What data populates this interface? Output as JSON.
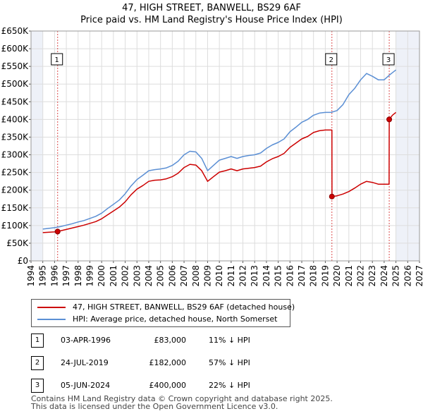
{
  "title_line1": "47, HIGH STREET, BANWELL, BS29 6AF",
  "title_line2": "Price paid vs. HM Land Registry's House Price Index (HPI)",
  "colors": {
    "hpi": "#5b8fd4",
    "price": "#cc0000",
    "grid": "#dddddd",
    "shade": "#eef1f8",
    "marker_line": "#cc0000"
  },
  "chart_data": {
    "type": "line",
    "title": "47, HIGH STREET, BANWELL, BS29 6AF — Price paid vs. HM Land Registry's House Price Index (HPI)",
    "xlabel": "",
    "ylabel": "",
    "xlim": [
      1994,
      2027
    ],
    "ylim": [
      0,
      650000
    ],
    "y_ticks": [
      0,
      50000,
      100000,
      150000,
      200000,
      250000,
      300000,
      350000,
      400000,
      450000,
      500000,
      550000,
      600000,
      650000
    ],
    "y_tick_labels": [
      "£0",
      "£50K",
      "£100K",
      "£150K",
      "£200K",
      "£250K",
      "£300K",
      "£350K",
      "£400K",
      "£450K",
      "£500K",
      "£550K",
      "£600K",
      "£650K"
    ],
    "x_ticks": [
      1994,
      1995,
      1996,
      1997,
      1998,
      1999,
      2000,
      2001,
      2002,
      2003,
      2004,
      2005,
      2006,
      2007,
      2008,
      2009,
      2010,
      2011,
      2012,
      2013,
      2014,
      2015,
      2016,
      2017,
      2018,
      2019,
      2020,
      2021,
      2022,
      2023,
      2024,
      2025,
      2026,
      2027
    ],
    "x_tick_labels": [
      "1994",
      "1995",
      "1996",
      "1997",
      "1998",
      "1999",
      "2000",
      "2001",
      "2002",
      "2003",
      "2004",
      "2005",
      "2006",
      "2007",
      "2008",
      "2009",
      "2010",
      "2011",
      "2012",
      "2013",
      "2014",
      "2015",
      "2016",
      "2017",
      "2018",
      "2019",
      "2020",
      "2021",
      "2022",
      "2023",
      "2024",
      "2025",
      "2026",
      "2027"
    ],
    "shaded_ranges": [
      [
        1994,
        1995
      ],
      [
        2025.0,
        2027
      ]
    ],
    "grid": true,
    "series": [
      {
        "name": "HPI: Average price, detached house, North Somerset",
        "color": "#5b8fd4",
        "x": [
          1995.0,
          1995.5,
          1996.0,
          1996.5,
          1997.0,
          1997.5,
          1998.0,
          1998.5,
          1999.0,
          1999.5,
          2000.0,
          2000.5,
          2001.0,
          2001.5,
          2002.0,
          2002.5,
          2003.0,
          2003.5,
          2004.0,
          2004.5,
          2005.0,
          2005.5,
          2006.0,
          2006.5,
          2007.0,
          2007.5,
          2008.0,
          2008.5,
          2009.0,
          2009.5,
          2010.0,
          2010.5,
          2011.0,
          2011.5,
          2012.0,
          2012.5,
          2013.0,
          2013.5,
          2014.0,
          2014.5,
          2015.0,
          2015.5,
          2016.0,
          2016.5,
          2017.0,
          2017.5,
          2018.0,
          2018.5,
          2019.0,
          2019.5,
          2020.0,
          2020.5,
          2021.0,
          2021.5,
          2022.0,
          2022.5,
          2023.0,
          2023.5,
          2024.0,
          2024.5,
          2025.0
        ],
        "y": [
          90000,
          92000,
          94000,
          97000,
          101000,
          105000,
          110000,
          114000,
          120000,
          126000,
          135000,
          148000,
          160000,
          172000,
          190000,
          212000,
          230000,
          242000,
          255000,
          258000,
          260000,
          263000,
          270000,
          282000,
          300000,
          310000,
          308000,
          290000,
          255000,
          270000,
          285000,
          290000,
          295000,
          290000,
          295000,
          298000,
          300000,
          305000,
          318000,
          328000,
          335000,
          345000,
          365000,
          378000,
          392000,
          400000,
          412000,
          418000,
          420000,
          420000,
          425000,
          442000,
          470000,
          488000,
          512000,
          530000,
          522000,
          512000,
          512000,
          527000,
          540000
        ]
      },
      {
        "name": "47, HIGH STREET, BANWELL, BS29 6AF (detached house)",
        "color": "#cc0000",
        "x": [
          1995.0,
          1995.5,
          1996.0,
          1996.26,
          1996.5,
          1997.0,
          1997.5,
          1998.0,
          1998.5,
          1999.0,
          1999.5,
          2000.0,
          2000.5,
          2001.0,
          2001.5,
          2002.0,
          2002.5,
          2003.0,
          2003.5,
          2004.0,
          2004.5,
          2005.0,
          2005.5,
          2006.0,
          2006.5,
          2007.0,
          2007.5,
          2008.0,
          2008.5,
          2009.0,
          2009.5,
          2010.0,
          2010.5,
          2011.0,
          2011.5,
          2012.0,
          2012.5,
          2013.0,
          2013.5,
          2014.0,
          2014.5,
          2015.0,
          2015.5,
          2016.0,
          2016.5,
          2017.0,
          2017.5,
          2018.0,
          2018.5,
          2019.0,
          2019.5,
          2019.56,
          2019.57,
          2020.0,
          2020.5,
          2021.0,
          2021.5,
          2022.0,
          2022.5,
          2023.0,
          2023.5,
          2024.0,
          2024.42,
          2024.43,
          2024.7,
          2025.0
        ],
        "y": [
          80000,
          81000,
          82000,
          83000,
          85000,
          89000,
          93000,
          97000,
          101000,
          106000,
          111000,
          119000,
          130000,
          141000,
          152000,
          167000,
          187000,
          203000,
          213000,
          225000,
          228000,
          229000,
          232000,
          238000,
          248000,
          264000,
          273000,
          271000,
          255000,
          225000,
          238000,
          251000,
          255000,
          260000,
          255000,
          260000,
          262000,
          264000,
          268000,
          280000,
          289000,
          295000,
          304000,
          321000,
          333000,
          345000,
          352000,
          363000,
          368000,
          370000,
          370000,
          370000,
          182000,
          184000,
          189000,
          196000,
          206000,
          217000,
          225000,
          222000,
          217000,
          217000,
          217000,
          400000,
          412000,
          420000
        ]
      }
    ],
    "markers": [
      {
        "label": "1",
        "x": 1996.26,
        "y": 83000
      },
      {
        "label": "2",
        "x": 2019.56,
        "y": 182000
      },
      {
        "label": "3",
        "x": 2024.43,
        "y": 400000
      }
    ]
  },
  "legend": {
    "price_label": "47, HIGH STREET, BANWELL, BS29 6AF (detached house)",
    "hpi_label": "HPI: Average price, detached house, North Somerset"
  },
  "transactions": [
    {
      "num": "1",
      "date": "03-APR-1996",
      "price": "£83,000",
      "diff": "11% ↓ HPI"
    },
    {
      "num": "2",
      "date": "24-JUL-2019",
      "price": "£182,000",
      "diff": "57% ↓ HPI"
    },
    {
      "num": "3",
      "date": "05-JUN-2024",
      "price": "£400,000",
      "diff": "22% ↓ HPI"
    }
  ],
  "footer": {
    "line1": "Contains HM Land Registry data © Crown copyright and database right 2025.",
    "line2": "This data is licensed under the Open Government Licence v3.0."
  }
}
